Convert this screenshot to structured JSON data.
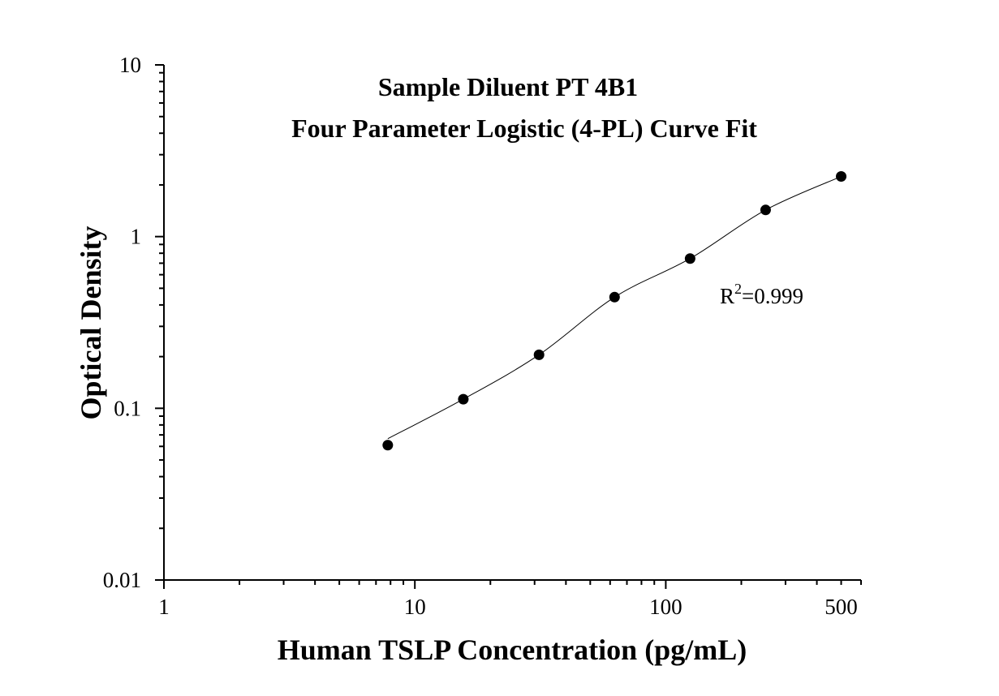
{
  "chart_data": {
    "type": "scatter",
    "title_lines": [
      "Sample Diluent PT 4B1",
      "Four Parameter Logistic (4-PL) Curve Fit"
    ],
    "xlabel": "Human TSLP Concentration (pg/mL)",
    "ylabel": "Optical Density",
    "x_scale": "log",
    "y_scale": "log",
    "xlim": [
      1,
      600
    ],
    "ylim": [
      0.01,
      10
    ],
    "x_ticks": [
      {
        "v": 1,
        "label": "1"
      },
      {
        "v": 10,
        "label": "10"
      },
      {
        "v": 100,
        "label": "100"
      },
      {
        "v": 500,
        "label": "500"
      }
    ],
    "y_ticks": [
      {
        "v": 0.01,
        "label": "0.01"
      },
      {
        "v": 0.1,
        "label": "0.1"
      },
      {
        "v": 1,
        "label": "1"
      },
      {
        "v": 10,
        "label": "10"
      }
    ],
    "grid": false,
    "points": {
      "x": [
        7.8,
        15.6,
        31.25,
        62.5,
        125,
        250,
        500
      ],
      "y": [
        0.061,
        0.113,
        0.205,
        0.444,
        0.745,
        1.43,
        2.24
      ]
    },
    "fit": {
      "type": "4-PL",
      "r2_label_base": "R",
      "r2_label_sup": "2",
      "r2_label_value": "=0.999"
    },
    "colors": {
      "points": "#000000",
      "curve": "#000000",
      "axes": "#000000"
    }
  }
}
